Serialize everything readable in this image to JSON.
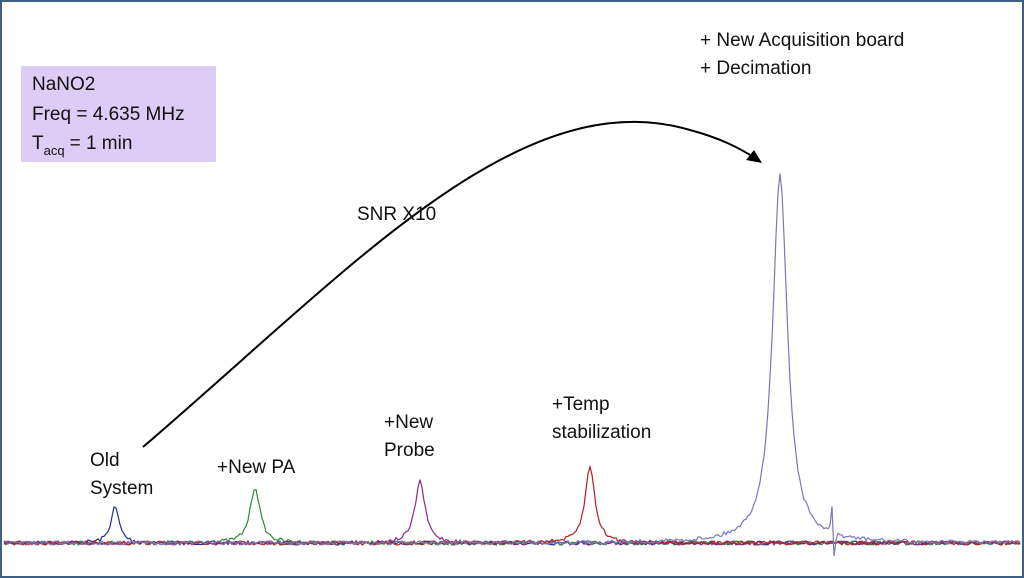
{
  "info": {
    "name": "NaNO2",
    "freq": "Freq = 4.635 MHz",
    "tacq_symbol": "T",
    "tacq_sub": "acq",
    "tacq_value": "= 1 min"
  },
  "arrow_label": "SNR X10",
  "upgrades": [
    "+  New Acquisition board",
    "+  Decimation"
  ],
  "labels": {
    "old": [
      "Old",
      "System"
    ],
    "pa": [
      "+New PA"
    ],
    "probe": [
      "+New",
      "Probe"
    ],
    "temp": [
      "+Temp",
      "stabilization"
    ]
  }
}
